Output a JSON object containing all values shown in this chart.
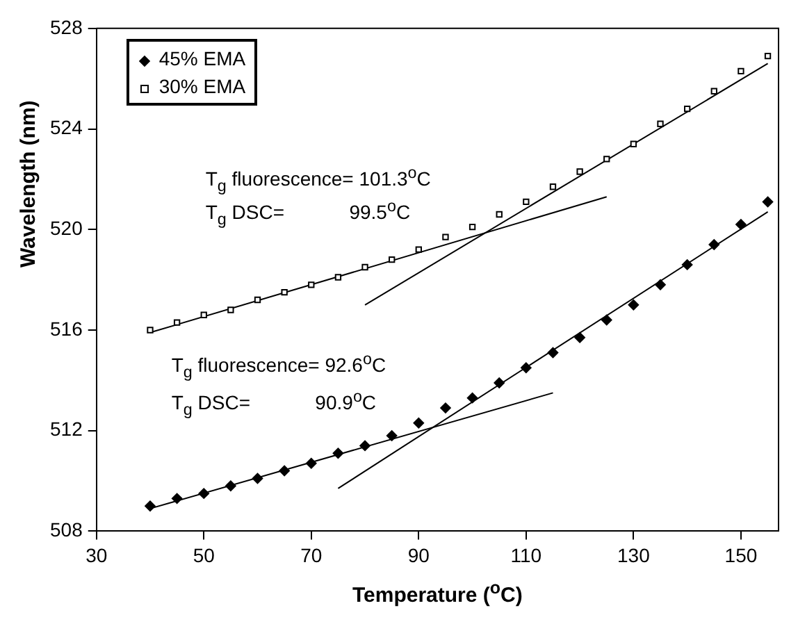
{
  "chart_data": {
    "type": "scatter",
    "xlabel": "Temperature ($^{o}$C)",
    "ylabel": "Wavelength (nm)",
    "xlim": [
      30,
      157
    ],
    "xticks": [
      30,
      50,
      70,
      90,
      110,
      130,
      150
    ],
    "ylim": [
      508,
      528
    ],
    "yticks": [
      508,
      512,
      516,
      520,
      524,
      528
    ],
    "grid": false,
    "legend": "top left",
    "annotations": [
      "T$_{g}$ fluorescence= 101.3$^{o}$C",
      "T$_{g}$ DSC=            99.5$^{o}$C",
      "T$_{g}$ fluorescence= 92.6$^{o}$C",
      "T$_{g}$ DSC=            90.9$^{o}$C"
    ],
    "series": [
      {
        "name": "45% EMA",
        "marker": "diamond",
        "color": "#000000",
        "x": [
          40,
          45,
          50,
          55,
          60,
          65,
          70,
          75,
          80,
          85,
          90,
          95,
          100,
          105,
          110,
          115,
          120,
          125,
          130,
          135,
          140,
          145,
          150,
          155
        ],
        "values": [
          509.0,
          509.3,
          509.5,
          509.8,
          510.1,
          510.4,
          510.7,
          511.1,
          511.4,
          511.8,
          512.3,
          512.9,
          513.3,
          513.9,
          514.5,
          515.1,
          515.7,
          516.4,
          517.0,
          517.8,
          518.6,
          519.4,
          520.2,
          521.1
        ]
      },
      {
        "name": "30% EMA",
        "marker": "square",
        "color": "#000000",
        "x": [
          40,
          45,
          50,
          55,
          60,
          65,
          70,
          75,
          80,
          85,
          90,
          95,
          100,
          105,
          110,
          115,
          120,
          125,
          130,
          135,
          140,
          145,
          150,
          155
        ],
        "values": [
          516.0,
          516.3,
          516.6,
          516.8,
          517.2,
          517.5,
          517.8,
          518.1,
          518.5,
          518.8,
          519.2,
          519.7,
          520.1,
          520.6,
          521.1,
          521.7,
          522.3,
          522.8,
          523.4,
          524.2,
          524.8,
          525.5,
          526.3,
          526.9
        ]
      },
      {
        "type": "line",
        "marker": "none",
        "color": "#000000",
        "x": [
          40,
          125
        ],
        "values": [
          515.9,
          521.3
        ]
      },
      {
        "type": "line",
        "marker": "none",
        "color": "#000000",
        "x": [
          80,
          155
        ],
        "values": [
          517.0,
          526.6
        ]
      },
      {
        "type": "line",
        "marker": "none",
        "color": "#000000",
        "x": [
          40,
          115
        ],
        "values": [
          508.9,
          513.5
        ]
      },
      {
        "type": "line",
        "marker": "none",
        "color": "#000000",
        "x": [
          75,
          155
        ],
        "values": [
          509.7,
          520.7
        ]
      }
    ]
  }
}
